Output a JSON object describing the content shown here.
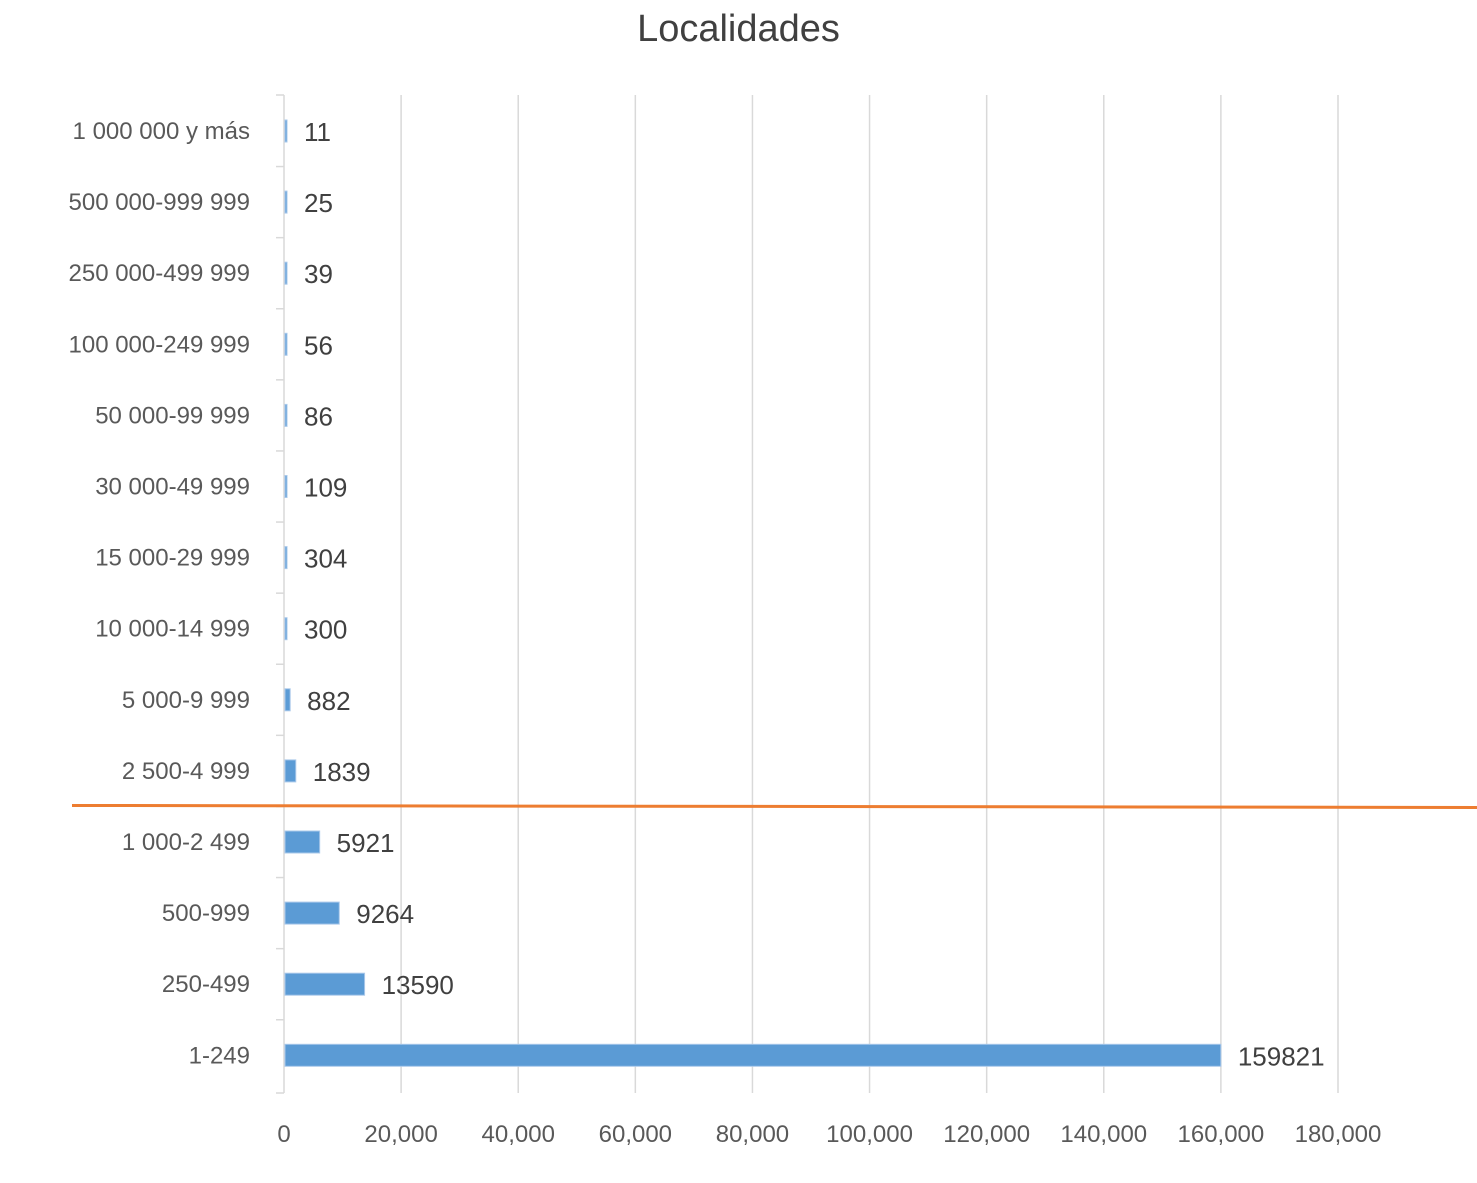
{
  "chart_data": {
    "type": "bar",
    "orientation": "horizontal",
    "title": "Localidades",
    "xlabel": "",
    "ylabel": "",
    "categories": [
      "1 000 000 y más",
      "500 000-999 999",
      "250 000-499 999",
      "100 000-249 999",
      "50 000-99 999",
      "30 000-49 999",
      "15 000-29 999",
      "10 000-14 999",
      "5 000-9 999",
      "2 500-4 999",
      "1 000-2 499",
      "500-999",
      "250-499",
      "1-249"
    ],
    "values": [
      11,
      25,
      39,
      56,
      86,
      109,
      304,
      300,
      882,
      1839,
      5921,
      9264,
      13590,
      159821
    ],
    "data_labels": [
      "11",
      "25",
      "39",
      "56",
      "86",
      "109",
      "304",
      "300",
      "882",
      "1839",
      "5921",
      "9264",
      "13590",
      "159821"
    ],
    "xlim": [
      0,
      180000
    ],
    "xticks": [
      0,
      20000,
      40000,
      60000,
      80000,
      100000,
      120000,
      140000,
      160000,
      180000
    ],
    "xtick_labels": [
      "0",
      "20,000",
      "40,000",
      "60,000",
      "80,000",
      "100,000",
      "120,000",
      "140,000",
      "160,000",
      "180,000"
    ],
    "grid": "vertical",
    "legend": "none",
    "separator_after_category": "2 500-4 999",
    "colors": {
      "bar": "#5b9bd5",
      "bar_edge": "#a9c8ea",
      "grid": "#d9d9d9",
      "separator": "#ed7d31",
      "text": "#595959",
      "title": "#404040"
    }
  }
}
